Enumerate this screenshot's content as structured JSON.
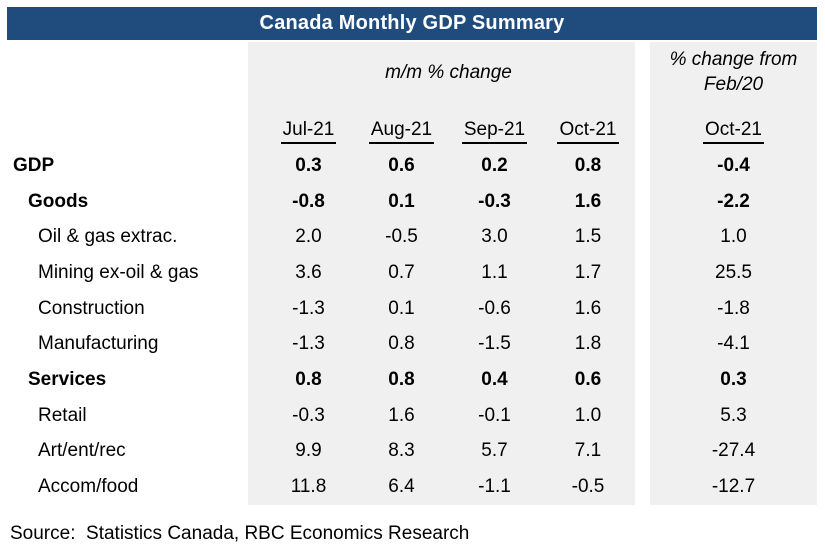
{
  "title_bar": "Canada Monthly GDP Summary",
  "colors": {
    "title_bg": "#1F4B7D",
    "title_text": "#FFFFFF",
    "panel_bg": "#F0F0F0",
    "body_text": "#000000"
  },
  "chart_data": {
    "type": "table",
    "title": "Canada Monthly GDP Summary",
    "mm_group_header": "m/m % change",
    "feb20_group_header": [
      "% change from",
      "Feb/20"
    ],
    "month_columns": [
      "Jul-21",
      "Aug-21",
      "Sep-21",
      "Oct-21"
    ],
    "feb20_column": "Oct-21",
    "rows": [
      {
        "label": "GDP",
        "indent": 0,
        "bold": true,
        "values": [
          "0.3",
          "0.6",
          "0.2",
          "0.8"
        ],
        "feb20": "-0.4"
      },
      {
        "label": "Goods",
        "indent": 1,
        "bold": true,
        "values": [
          "-0.8",
          "0.1",
          "-0.3",
          "1.6"
        ],
        "feb20": "-2.2"
      },
      {
        "label": "Oil & gas extrac.",
        "indent": 2,
        "bold": false,
        "values": [
          "2.0",
          "-0.5",
          "3.0",
          "1.5"
        ],
        "feb20": "1.0"
      },
      {
        "label": "Mining ex-oil & gas",
        "indent": 2,
        "bold": false,
        "values": [
          "3.6",
          "0.7",
          "1.1",
          "1.7"
        ],
        "feb20": "25.5"
      },
      {
        "label": "Construction",
        "indent": 2,
        "bold": false,
        "values": [
          "-1.3",
          "0.1",
          "-0.6",
          "1.6"
        ],
        "feb20": "-1.8"
      },
      {
        "label": "Manufacturing",
        "indent": 2,
        "bold": false,
        "values": [
          "-1.3",
          "0.8",
          "-1.5",
          "1.8"
        ],
        "feb20": "-4.1"
      },
      {
        "label": "Services",
        "indent": 1,
        "bold": true,
        "values": [
          "0.8",
          "0.8",
          "0.4",
          "0.6"
        ],
        "feb20": "0.3"
      },
      {
        "label": "Retail",
        "indent": 2,
        "bold": false,
        "values": [
          "-0.3",
          "1.6",
          "-0.1",
          "1.0"
        ],
        "feb20": "5.3"
      },
      {
        "label": "Art/ent/rec",
        "indent": 2,
        "bold": false,
        "values": [
          "9.9",
          "8.3",
          "5.7",
          "7.1"
        ],
        "feb20": "-27.4"
      },
      {
        "label": "Accom/food",
        "indent": 2,
        "bold": false,
        "values": [
          "11.8",
          "6.4",
          "-1.1",
          "-0.5"
        ],
        "feb20": "-12.7"
      }
    ],
    "source": "Source:  Statistics Canada, RBC Economics Research"
  }
}
